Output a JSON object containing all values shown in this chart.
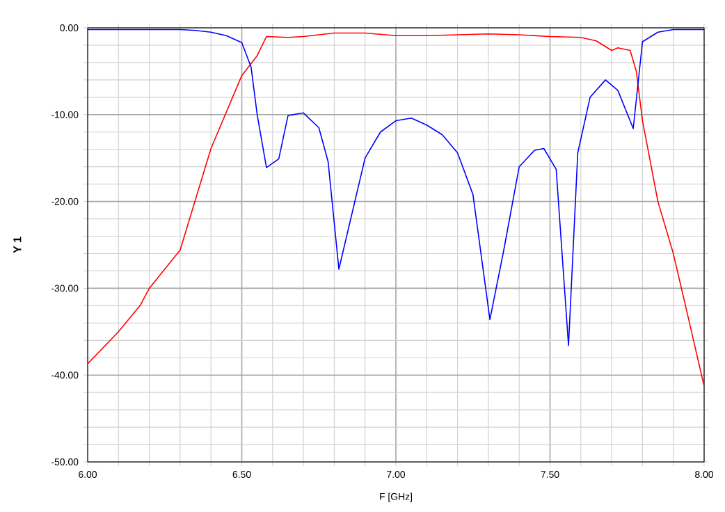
{
  "chart_data": {
    "type": "line",
    "xlabel": "F [GHz]",
    "ylabel": "Y 1",
    "xlim": [
      6.0,
      8.0
    ],
    "ylim": [
      -50,
      0
    ],
    "xticks": [
      {
        "value": 6.0,
        "label": "6.00"
      },
      {
        "value": 6.5,
        "label": "6.50"
      },
      {
        "value": 7.0,
        "label": "7.00"
      },
      {
        "value": 7.5,
        "label": "7.50"
      },
      {
        "value": 8.0,
        "label": "8.00"
      }
    ],
    "yticks": [
      {
        "value": -50,
        "label": "-50.00"
      },
      {
        "value": -40,
        "label": "-40.00"
      },
      {
        "value": -30,
        "label": "-30.00"
      },
      {
        "value": -20,
        "label": "-20.00"
      },
      {
        "value": -10,
        "label": "-10.00"
      },
      {
        "value": 0,
        "label": "0.00"
      }
    ],
    "grid": true,
    "marker": "none",
    "line_style": "solid",
    "series": [
      {
        "color": "#ff0000",
        "x": [
          6.0,
          6.1,
          6.17,
          6.2,
          6.3,
          6.4,
          6.5,
          6.55,
          6.58,
          6.65,
          6.7,
          6.8,
          6.9,
          7.0,
          7.1,
          7.2,
          7.3,
          7.4,
          7.5,
          7.6,
          7.65,
          7.7,
          7.72,
          7.76,
          7.78,
          7.8,
          7.85,
          7.9,
          7.95,
          8.0
        ],
        "values": [
          -38.7,
          -35,
          -32,
          -30,
          -25.6,
          -13.9,
          -5.5,
          -3.2,
          -1.0,
          -1.1,
          -1.0,
          -0.6,
          -0.6,
          -0.9,
          -0.9,
          -0.8,
          -0.7,
          -0.8,
          -1.0,
          -1.1,
          -1.5,
          -2.6,
          -2.3,
          -2.6,
          -5,
          -10.7,
          -20,
          -26,
          -33.6,
          -41.3
        ]
      },
      {
        "color": "#0000ff",
        "x": [
          6.0,
          6.1,
          6.2,
          6.3,
          6.35,
          6.4,
          6.45,
          6.5,
          6.53,
          6.55,
          6.58,
          6.62,
          6.65,
          6.7,
          6.75,
          6.78,
          6.815,
          6.9,
          6.95,
          7.0,
          7.05,
          7.1,
          7.15,
          7.2,
          7.25,
          7.305,
          7.35,
          7.4,
          7.45,
          7.48,
          7.52,
          7.56,
          7.59,
          7.63,
          7.68,
          7.72,
          7.77,
          7.8,
          7.85,
          7.9,
          8.0
        ],
        "values": [
          -0.2,
          -0.2,
          -0.2,
          -0.2,
          -0.3,
          -0.5,
          -0.9,
          -1.7,
          -4.5,
          -10,
          -16.1,
          -15.1,
          -10.1,
          -9.8,
          -11.5,
          -15.4,
          -27.8,
          -15,
          -12,
          -10.7,
          -10.4,
          -11.2,
          -12.3,
          -14.4,
          -19.2,
          -33.6,
          -25.6,
          -16,
          -14.1,
          -13.9,
          -16.3,
          -36.6,
          -14.4,
          -8,
          -6.0,
          -7.2,
          -11.6,
          -1.6,
          -0.5,
          -0.2,
          -0.2
        ]
      }
    ]
  }
}
